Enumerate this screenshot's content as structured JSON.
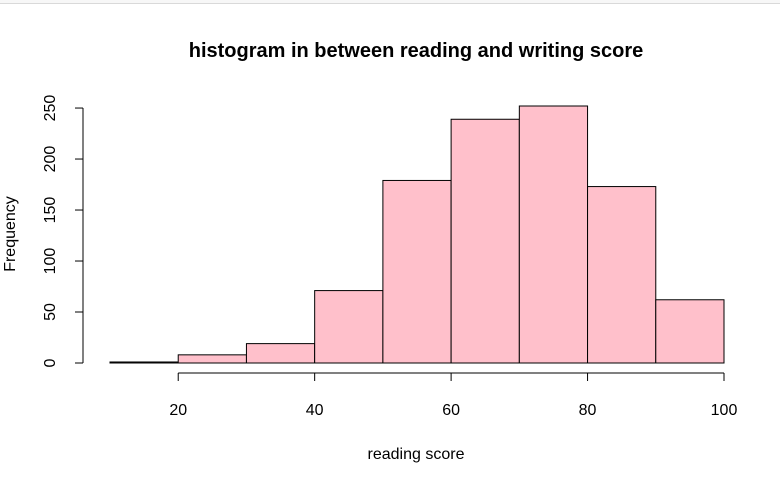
{
  "chart_data": {
    "type": "bar",
    "title": "histogram in between reading and writing score",
    "xlabel": "reading score",
    "ylabel": "Frequency",
    "bins": [
      {
        "start": 10,
        "end": 20,
        "count": 1
      },
      {
        "start": 20,
        "end": 30,
        "count": 8
      },
      {
        "start": 30,
        "end": 40,
        "count": 19
      },
      {
        "start": 40,
        "end": 50,
        "count": 71
      },
      {
        "start": 50,
        "end": 60,
        "count": 179
      },
      {
        "start": 60,
        "end": 70,
        "count": 239
      },
      {
        "start": 70,
        "end": 80,
        "count": 252
      },
      {
        "start": 80,
        "end": 90,
        "count": 173
      },
      {
        "start": 90,
        "end": 100,
        "count": 62
      }
    ],
    "x_ticks": [
      20,
      40,
      60,
      80,
      100
    ],
    "y_ticks": [
      0,
      50,
      100,
      150,
      200,
      250
    ],
    "xlim": [
      10,
      100
    ],
    "ylim": [
      0,
      252
    ],
    "bar_color": "#FFC0CB",
    "bar_border_color": "#000000",
    "grid": false
  }
}
